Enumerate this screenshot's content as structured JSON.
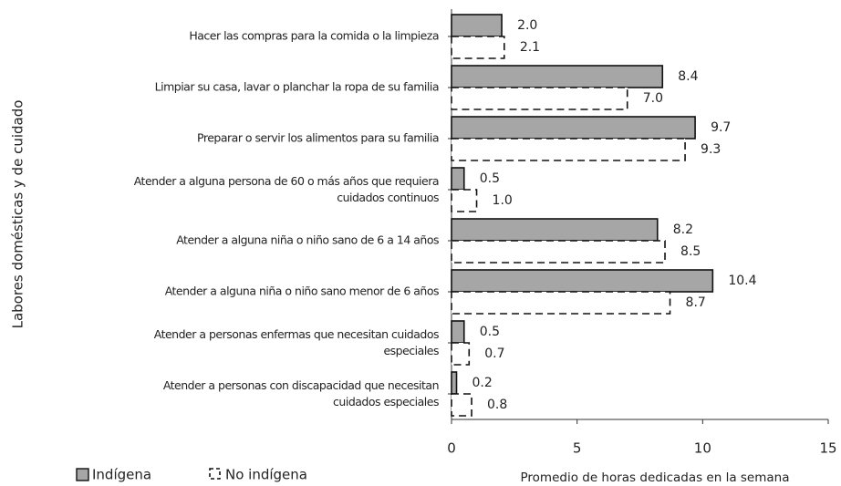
{
  "chart_data": {
    "type": "bar",
    "orientation": "horizontal",
    "y_label": "Labores domésticas y de cuidado",
    "x_label": "Promedio de horas dedicadas en la semana",
    "categories": [
      "Hacer las compras para la comida o la limpieza",
      "Limpiar su casa, lavar o planchar la ropa de su familia",
      "Preparar o servir los alimentos para su familia",
      "Atender a alguna persona de 60 o más años que requiera\ncuidados continuos",
      "Atender a alguna niña o niño sano de 6 a 14 años",
      "Atender a alguna niña o niño sano menor de 6 años",
      "Atender a personas enfermas que necesitan cuidados\nespeciales",
      "Atender a personas con discapacidad que necesitan\ncuidados especiales"
    ],
    "series": [
      {
        "name": "Indígena",
        "color": "#a6a6a6",
        "values": [
          2.0,
          8.4,
          9.7,
          0.5,
          8.2,
          10.4,
          0.5,
          0.2
        ],
        "value_labels": [
          "2.0",
          "8.4",
          "9.7",
          "0.5",
          "8.2",
          "10.4",
          "0.5",
          "0.2"
        ]
      },
      {
        "name": "No indígena",
        "color": "#ffffff",
        "values": [
          2.1,
          7.0,
          9.3,
          1.0,
          8.5,
          8.7,
          0.7,
          0.8
        ],
        "value_labels": [
          "2.1",
          "7.0",
          "9.3",
          "1.0",
          "8.5",
          "8.7",
          "0.7",
          "0.8"
        ]
      }
    ],
    "xlim": [
      0,
      15
    ],
    "xticks": [
      0,
      5,
      10,
      15
    ],
    "legend": "bottom-left"
  }
}
